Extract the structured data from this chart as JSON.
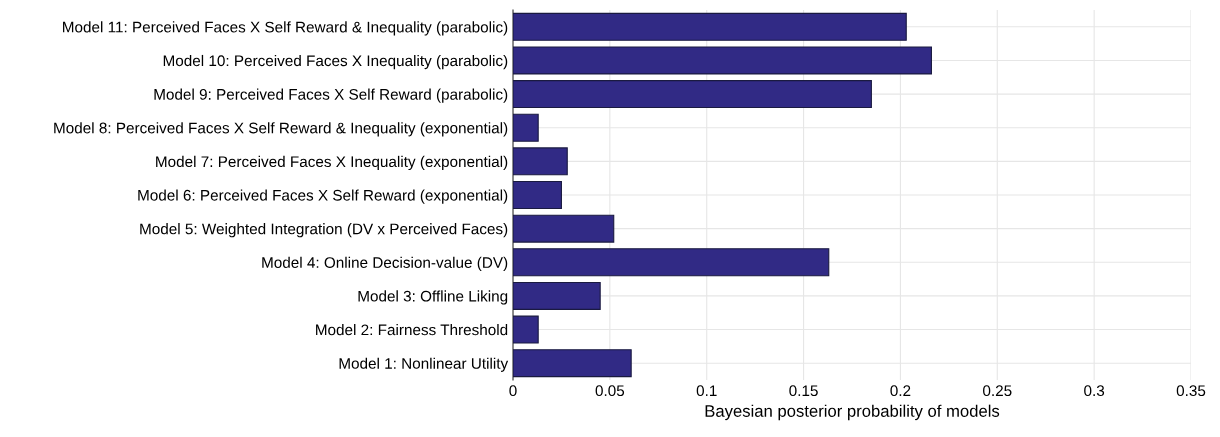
{
  "chart_data": {
    "type": "bar",
    "orientation": "horizontal",
    "xlabel": "Bayesian posterior probability of models",
    "categories": [
      "Model 11: Perceived Faces X Self Reward & Inequality (parabolic)",
      "Model 10: Perceived Faces X Inequality (parabolic)",
      "Model 9: Perceived Faces X Self Reward (parabolic)",
      "Model 8: Perceived Faces X Self Reward & Inequality (exponential)",
      "Model 7: Perceived Faces X Inequality (exponential)",
      "Model 6: Perceived Faces X Self Reward (exponential)",
      "Model 5: Weighted Integration (DV x Perceived Faces)",
      "Model 4: Online Decision-value (DV)",
      "Model 3: Offline Liking",
      "Model 2: Fairness Threshold",
      "Model 1: Nonlinear Utility"
    ],
    "values": [
      0.203,
      0.216,
      0.185,
      0.013,
      0.028,
      0.025,
      0.052,
      0.163,
      0.045,
      0.013,
      0.061
    ],
    "color": "#312a85",
    "xlim": [
      0,
      0.35
    ],
    "xticks": [
      0,
      0.05,
      0.1,
      0.15,
      0.2,
      0.25,
      0.3,
      0.35
    ],
    "grid": true
  }
}
